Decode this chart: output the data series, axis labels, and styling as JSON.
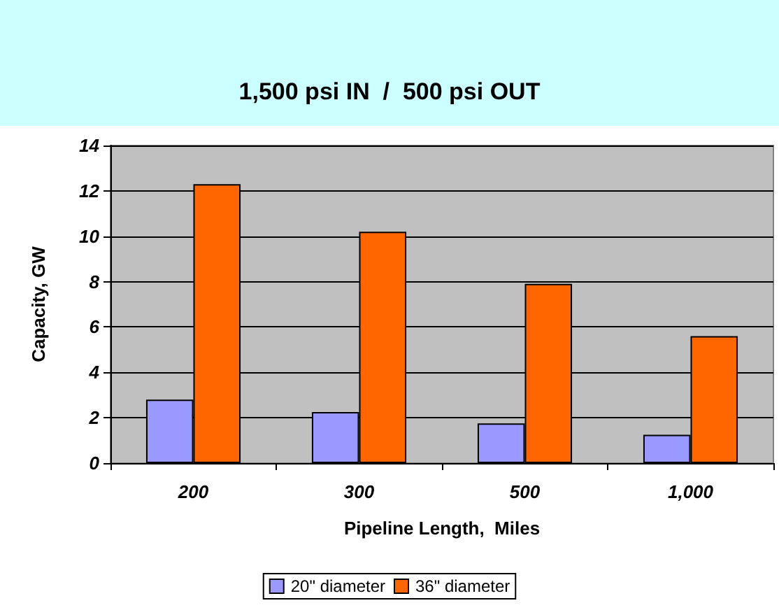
{
  "chart_data": {
    "type": "bar",
    "title": "1,500 psi IN  /  500 psi OUT",
    "xlabel": "Pipeline Length,  Miles",
    "ylabel": "Capacity, GW",
    "categories": [
      "200",
      "300",
      "500",
      "1,000"
    ],
    "series": [
      {
        "name": "20\" diameter",
        "color": "#9999ff",
        "values": [
          2.8,
          2.25,
          1.75,
          1.25
        ]
      },
      {
        "name": "36\" diameter",
        "color": "#ff6600",
        "values": [
          12.3,
          10.2,
          7.9,
          5.6
        ]
      }
    ],
    "ylim": [
      0,
      14
    ],
    "yticks": [
      0,
      2,
      4,
      6,
      8,
      10,
      12,
      14
    ],
    "grid": "y",
    "legend": "bottom"
  }
}
